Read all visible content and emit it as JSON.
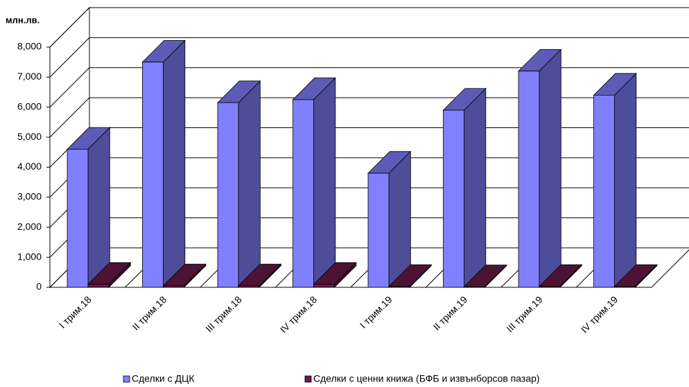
{
  "chart_data": {
    "type": "bar3d",
    "y_label": "млн.лв.",
    "categories": [
      "I трим.18",
      "II трим.18",
      "III трим.18",
      "IV трим.18",
      "I трим.19",
      "II трим.19",
      "III трим.19",
      "IV трим.19"
    ],
    "series": [
      {
        "name": "Сделки с ДЦК",
        "color": "#8080ff",
        "values": [
          4600,
          7500,
          6150,
          6250,
          3800,
          5900,
          7200,
          6400
        ]
      },
      {
        "name": "Сделки с ценни книжа (БФБ и извънборсов пазар)",
        "color": "#6b1a4a",
        "values": [
          100,
          50,
          50,
          100,
          30,
          20,
          30,
          30
        ]
      }
    ],
    "ylim": [
      0,
      8000
    ],
    "yticks": [
      0,
      {
        "value": 1000,
        "label": "1,000"
      },
      {
        "value": 2000,
        "label": "2,000"
      },
      {
        "value": 3000,
        "label": "3,000"
      },
      {
        "value": 4000,
        "label": "4,000"
      },
      {
        "value": 5000,
        "label": "5,000"
      },
      {
        "value": 6000,
        "label": "6,000"
      },
      {
        "value": 7000,
        "label": "7,000"
      },
      {
        "value": 8000,
        "label": "8,000"
      }
    ],
    "grid": true,
    "legend": "bottom"
  }
}
